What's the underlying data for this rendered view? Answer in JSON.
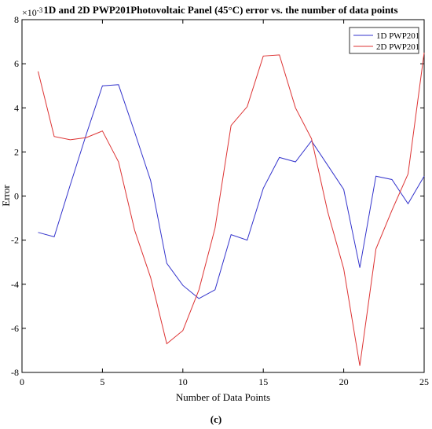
{
  "chart_data": {
    "type": "line",
    "title": "1D and 2D PWP201Photovoltaic Panel (45°C) error vs. the number of data points",
    "xlabel": "Number of Data Points",
    "ylabel": "Error",
    "exponent_label": "×10",
    "exponent_power": "-3",
    "xlim": [
      0,
      25
    ],
    "ylim": [
      -8,
      8
    ],
    "xticks": [
      0,
      5,
      10,
      15,
      20,
      25
    ],
    "yticks": [
      -8,
      -6,
      -4,
      -2,
      0,
      2,
      4,
      6,
      8
    ],
    "grid": false,
    "legend_position": "top-right",
    "x": [
      1,
      2,
      3,
      4,
      5,
      6,
      7,
      8,
      9,
      10,
      11,
      12,
      13,
      14,
      15,
      16,
      17,
      18,
      19,
      20,
      21,
      22,
      23,
      24,
      25
    ],
    "series": [
      {
        "name": "1D PWP201",
        "color": "#3333cc",
        "values": [
          -1.65,
          -1.85,
          0.5,
          2.8,
          5.0,
          5.05,
          2.9,
          0.7,
          -3.05,
          -4.05,
          -4.65,
          -4.25,
          -1.75,
          -2.0,
          0.35,
          1.75,
          1.55,
          2.5,
          1.4,
          0.3,
          -3.25,
          0.9,
          0.75,
          -0.35,
          0.9
        ]
      },
      {
        "name": "2D PWP201",
        "color": "#dd3333",
        "values": [
          5.65,
          2.7,
          2.55,
          2.65,
          2.95,
          1.55,
          -1.55,
          -3.7,
          -6.7,
          -6.1,
          -4.25,
          -1.45,
          3.2,
          4.05,
          6.35,
          6.4,
          4.0,
          2.6,
          -0.7,
          -3.3,
          -7.7,
          -2.4,
          -0.65,
          1.0,
          6.5
        ]
      }
    ]
  },
  "caption": "(c)"
}
